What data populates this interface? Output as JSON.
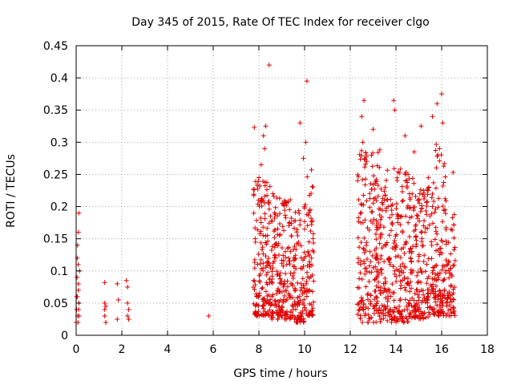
{
  "chart_data": {
    "type": "scatter",
    "title": "Day 345 of 2015, Rate Of TEC Index for receiver clgo",
    "xlabel": "GPS time / hours",
    "ylabel": "ROTI / TECUs",
    "xlim": [
      0,
      18
    ],
    "ylim": [
      0,
      0.45
    ],
    "xticks": [
      0,
      2,
      4,
      6,
      8,
      10,
      12,
      14,
      16,
      18
    ],
    "yticks": [
      0,
      0.05,
      0.1,
      0.15,
      0.2,
      0.25,
      0.3,
      0.35,
      0.4,
      0.45
    ],
    "xtick_labels": [
      "0",
      "2",
      "4",
      "6",
      "8",
      "10",
      "12",
      "14",
      "16",
      "18"
    ],
    "ytick_labels": [
      "0",
      "0.05",
      "0.1",
      "0.15",
      "0.2",
      "0.25",
      "0.3",
      "0.35",
      "0.4",
      "0.45"
    ],
    "grid": true,
    "marker": "+",
    "color": "#e00000",
    "series": [
      {
        "name": "ROTI",
        "points": [
          [
            0.0,
            0.02
          ],
          [
            0.02,
            0.04
          ],
          [
            0.05,
            0.06
          ],
          [
            0.07,
            0.03
          ],
          [
            0.1,
            0.08
          ],
          [
            0.12,
            0.05
          ],
          [
            0.15,
            0.1
          ],
          [
            0.05,
            0.12
          ],
          [
            0.1,
            0.16
          ],
          [
            0.12,
            0.19
          ],
          [
            0.08,
            0.02
          ],
          [
            0.04,
            0.09
          ],
          [
            0.06,
            0.14
          ],
          [
            0.1,
            0.07
          ],
          [
            0.13,
            0.03
          ],
          [
            0.02,
            0.06
          ],
          [
            0.09,
            0.11
          ],
          [
            0.11,
            0.04
          ],
          [
            1.25,
            0.082
          ],
          [
            1.25,
            0.05
          ],
          [
            1.25,
            0.04
          ],
          [
            1.25,
            0.03
          ],
          [
            1.3,
            0.045
          ],
          [
            1.3,
            0.02
          ],
          [
            1.8,
            0.08
          ],
          [
            1.85,
            0.055
          ],
          [
            1.8,
            0.025
          ],
          [
            2.2,
            0.085
          ],
          [
            2.25,
            0.075
          ],
          [
            2.25,
            0.05
          ],
          [
            2.3,
            0.04
          ],
          [
            2.25,
            0.03
          ],
          [
            2.3,
            0.025
          ],
          [
            5.8,
            0.03
          ],
          [
            7.8,
            0.323
          ],
          [
            7.85,
            0.036
          ],
          [
            8.45,
            0.42
          ],
          [
            9.8,
            0.33
          ],
          [
            10.1,
            0.395
          ],
          [
            10.05,
            0.3
          ],
          [
            9.95,
            0.275
          ],
          [
            10.3,
            0.257
          ],
          [
            8.2,
            0.31
          ],
          [
            8.3,
            0.325
          ],
          [
            8.25,
            0.29
          ],
          [
            8.0,
            0.245
          ],
          [
            8.1,
            0.265
          ],
          [
            12.6,
            0.365
          ],
          [
            13.0,
            0.32
          ],
          [
            13.9,
            0.365
          ],
          [
            13.95,
            0.35
          ],
          [
            15.6,
            0.34
          ],
          [
            15.8,
            0.36
          ],
          [
            16.0,
            0.375
          ],
          [
            16.05,
            0.33
          ],
          [
            15.1,
            0.325
          ],
          [
            14.4,
            0.31
          ],
          [
            14.8,
            0.285
          ],
          [
            12.55,
            0.3
          ],
          [
            12.7,
            0.28
          ],
          [
            16.5,
            0.253
          ],
          [
            12.5,
            0.34
          ]
        ]
      }
    ],
    "point_clusters": [
      {
        "x_range": [
          7.75,
          8.5
        ],
        "y_range": [
          0.03,
          0.24
        ],
        "count": 150
      },
      {
        "x_range": [
          8.5,
          9.4
        ],
        "y_range": [
          0.025,
          0.22
        ],
        "count": 170
      },
      {
        "x_range": [
          9.4,
          10.0
        ],
        "y_range": [
          0.02,
          0.2
        ],
        "count": 110
      },
      {
        "x_range": [
          10.0,
          10.4
        ],
        "y_range": [
          0.03,
          0.25
        ],
        "count": 70
      },
      {
        "x_range": [
          12.3,
          13.3
        ],
        "y_range": [
          0.02,
          0.29
        ],
        "count": 190
      },
      {
        "x_range": [
          13.3,
          14.6
        ],
        "y_range": [
          0.02,
          0.26
        ],
        "count": 240
      },
      {
        "x_range": [
          14.6,
          15.6
        ],
        "y_range": [
          0.025,
          0.25
        ],
        "count": 190
      },
      {
        "x_range": [
          15.6,
          16.2
        ],
        "y_range": [
          0.03,
          0.3
        ],
        "count": 130
      },
      {
        "x_range": [
          16.2,
          16.6
        ],
        "y_range": [
          0.03,
          0.2
        ],
        "count": 60
      }
    ]
  }
}
